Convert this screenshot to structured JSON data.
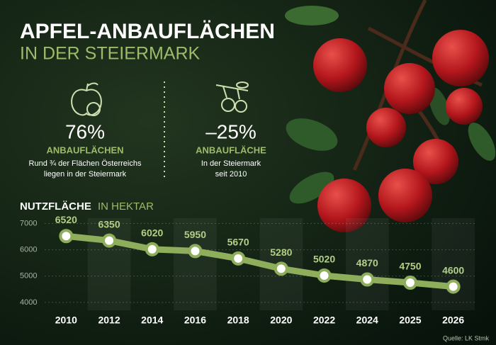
{
  "chart_data": {
    "type": "line",
    "title": "APFEL-ANBAUFLÄCHEN",
    "subtitle": "IN DER STEIERMARK",
    "axis_title": "NUTZFLÄCHE",
    "axis_unit": "IN HEKTAR",
    "categories": [
      "2010",
      "2012",
      "2014",
      "2016",
      "2018",
      "2020",
      "2022",
      "2024",
      "2025",
      "2026"
    ],
    "values": [
      6520,
      6350,
      6020,
      5950,
      5670,
      5280,
      5020,
      4870,
      4750,
      4600
    ],
    "color": "#8fae5b",
    "ylim": [
      3700,
      7200
    ],
    "yticks": [
      4000,
      5000,
      6000,
      7000
    ],
    "grid": true,
    "source": "Quelle: LK Stmk"
  },
  "stats": [
    {
      "value": "76%",
      "label": "ANBAUFLÄCHEN",
      "lines": [
        "Rund ¾ der Flächen Österreichs",
        "liegen in der Steiermark"
      ]
    },
    {
      "value": "–25%",
      "label": "ANBAUFLÄCHE",
      "lines": [
        "In der Steiermark",
        "seit 2010"
      ]
    }
  ]
}
